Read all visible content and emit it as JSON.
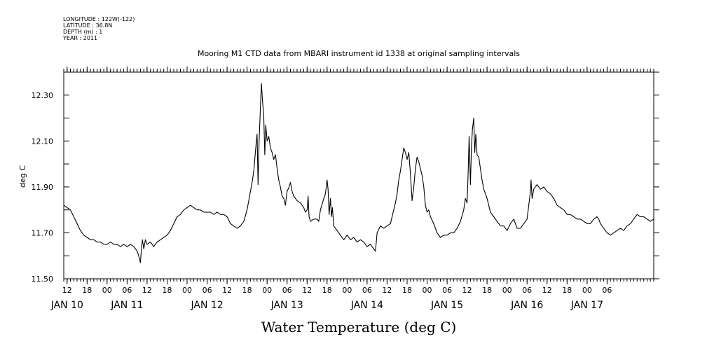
{
  "header": {
    "meta_lines": [
      "LONGITUDE : 122W(-122)",
      "LATITUDE : 36.8N",
      "DEPTH (m) : 1",
      "YEAR : 2011"
    ]
  },
  "chart_data": {
    "type": "line",
    "title": "Mooring M1 CTD data from MBARI instrument id 1338 at original sampling intervals",
    "xlabel": "Water Temperature (deg C)",
    "ylabel": "deg C",
    "ylim": [
      11.5,
      12.4
    ],
    "yticks": [
      "11.50",
      "11.70",
      "11.90",
      "12.10",
      "12.30"
    ],
    "x_unit": "hours since Jan 10 00:00 (2011)",
    "xlim": [
      11,
      188
    ],
    "hour_ticks": [
      {
        "t": 12,
        "label": "12"
      },
      {
        "t": 18,
        "label": "18"
      },
      {
        "t": 24,
        "label": "00"
      },
      {
        "t": 30,
        "label": "06"
      },
      {
        "t": 36,
        "label": "12"
      },
      {
        "t": 42,
        "label": "18"
      },
      {
        "t": 48,
        "label": "00"
      },
      {
        "t": 54,
        "label": "06"
      },
      {
        "t": 60,
        "label": "12"
      },
      {
        "t": 66,
        "label": "18"
      },
      {
        "t": 72,
        "label": "00"
      },
      {
        "t": 78,
        "label": "06"
      },
      {
        "t": 84,
        "label": "12"
      },
      {
        "t": 90,
        "label": "18"
      },
      {
        "t": 96,
        "label": "00"
      },
      {
        "t": 102,
        "label": "06"
      },
      {
        "t": 108,
        "label": "12"
      },
      {
        "t": 114,
        "label": "18"
      },
      {
        "t": 120,
        "label": "00"
      },
      {
        "t": 126,
        "label": "06"
      },
      {
        "t": 132,
        "label": "12"
      },
      {
        "t": 138,
        "label": "18"
      },
      {
        "t": 144,
        "label": "00"
      },
      {
        "t": 150,
        "label": "06"
      },
      {
        "t": 156,
        "label": "12"
      },
      {
        "t": 162,
        "label": "18"
      },
      {
        "t": 168,
        "label": "00"
      },
      {
        "t": 174,
        "label": "06"
      }
    ],
    "day_labels": [
      {
        "t": 12,
        "label": "JAN 10"
      },
      {
        "t": 30,
        "label": "JAN 11"
      },
      {
        "t": 54,
        "label": "JAN 12"
      },
      {
        "t": 78,
        "label": "JAN 13"
      },
      {
        "t": 102,
        "label": "JAN 14"
      },
      {
        "t": 126,
        "label": "JAN 15"
      },
      {
        "t": 150,
        "label": "JAN 16"
      },
      {
        "t": 168,
        "label": "JAN 17"
      }
    ],
    "series": [
      {
        "color": "#000000",
        "points": [
          [
            11.0,
            11.82
          ],
          [
            12.0,
            11.81
          ],
          [
            13.0,
            11.8
          ],
          [
            14.0,
            11.77
          ],
          [
            15.0,
            11.74
          ],
          [
            16.0,
            11.71
          ],
          [
            17.0,
            11.69
          ],
          [
            18.0,
            11.68
          ],
          [
            19.0,
            11.67
          ],
          [
            20.0,
            11.67
          ],
          [
            21.0,
            11.66
          ],
          [
            22.0,
            11.66
          ],
          [
            23.0,
            11.65
          ],
          [
            24.0,
            11.65
          ],
          [
            25.0,
            11.66
          ],
          [
            26.0,
            11.65
          ],
          [
            27.0,
            11.65
          ],
          [
            28.0,
            11.64
          ],
          [
            29.0,
            11.65
          ],
          [
            30.0,
            11.64
          ],
          [
            31.0,
            11.65
          ],
          [
            32.0,
            11.64
          ],
          [
            33.0,
            11.62
          ],
          [
            33.5,
            11.6
          ],
          [
            34.0,
            11.57
          ],
          [
            34.3,
            11.63
          ],
          [
            34.6,
            11.67
          ],
          [
            35.0,
            11.63
          ],
          [
            35.5,
            11.67
          ],
          [
            36.0,
            11.65
          ],
          [
            37.0,
            11.66
          ],
          [
            38.0,
            11.64
          ],
          [
            39.0,
            11.66
          ],
          [
            40.0,
            11.67
          ],
          [
            41.0,
            11.68
          ],
          [
            42.0,
            11.69
          ],
          [
            43.0,
            11.71
          ],
          [
            44.0,
            11.74
          ],
          [
            45.0,
            11.77
          ],
          [
            46.0,
            11.78
          ],
          [
            47.0,
            11.8
          ],
          [
            48.0,
            11.81
          ],
          [
            49.0,
            11.82
          ],
          [
            50.0,
            11.81
          ],
          [
            51.0,
            11.8
          ],
          [
            52.0,
            11.8
          ],
          [
            53.0,
            11.79
          ],
          [
            54.0,
            11.79
          ],
          [
            55.0,
            11.79
          ],
          [
            56.0,
            11.78
          ],
          [
            57.0,
            11.79
          ],
          [
            58.0,
            11.78
          ],
          [
            59.0,
            11.78
          ],
          [
            60.0,
            11.77
          ],
          [
            61.0,
            11.74
          ],
          [
            62.0,
            11.73
          ],
          [
            63.0,
            11.72
          ],
          [
            64.0,
            11.73
          ],
          [
            65.0,
            11.75
          ],
          [
            66.0,
            11.8
          ],
          [
            67.0,
            11.88
          ],
          [
            67.5,
            11.92
          ],
          [
            68.0,
            11.97
          ],
          [
            68.6,
            12.07
          ],
          [
            69.0,
            12.13
          ],
          [
            69.3,
            11.91
          ],
          [
            69.6,
            12.1
          ],
          [
            70.0,
            12.25
          ],
          [
            70.3,
            12.35
          ],
          [
            70.6,
            12.28
          ],
          [
            71.0,
            12.21
          ],
          [
            71.3,
            12.04
          ],
          [
            71.6,
            12.17
          ],
          [
            72.0,
            12.1
          ],
          [
            72.5,
            12.12
          ],
          [
            73.0,
            12.07
          ],
          [
            73.5,
            12.05
          ],
          [
            74.0,
            12.02
          ],
          [
            74.5,
            12.04
          ],
          [
            75.0,
            11.98
          ],
          [
            75.5,
            11.93
          ],
          [
            76.0,
            11.9
          ],
          [
            76.5,
            11.86
          ],
          [
            77.0,
            11.85
          ],
          [
            77.5,
            11.82
          ],
          [
            78.0,
            11.88
          ],
          [
            78.6,
            11.9
          ],
          [
            79.0,
            11.92
          ],
          [
            79.5,
            11.88
          ],
          [
            80.0,
            11.86
          ],
          [
            81.0,
            11.84
          ],
          [
            82.0,
            11.83
          ],
          [
            83.0,
            11.81
          ],
          [
            83.5,
            11.79
          ],
          [
            84.0,
            11.8
          ],
          [
            84.3,
            11.86
          ],
          [
            84.6,
            11.77
          ],
          [
            85.0,
            11.75
          ],
          [
            86.0,
            11.76
          ],
          [
            87.0,
            11.76
          ],
          [
            87.5,
            11.75
          ],
          [
            88.0,
            11.8
          ],
          [
            89.0,
            11.85
          ],
          [
            89.5,
            11.87
          ],
          [
            90.0,
            11.93
          ],
          [
            90.3,
            11.89
          ],
          [
            90.6,
            11.78
          ],
          [
            91.0,
            11.85
          ],
          [
            91.3,
            11.77
          ],
          [
            91.6,
            11.81
          ],
          [
            92.0,
            11.73
          ],
          [
            93.0,
            11.71
          ],
          [
            94.0,
            11.69
          ],
          [
            95.0,
            11.67
          ],
          [
            96.0,
            11.69
          ],
          [
            97.0,
            11.67
          ],
          [
            98.0,
            11.68
          ],
          [
            99.0,
            11.66
          ],
          [
            100.0,
            11.67
          ],
          [
            101.0,
            11.66
          ],
          [
            102.0,
            11.64
          ],
          [
            103.0,
            11.65
          ],
          [
            104.0,
            11.63
          ],
          [
            104.5,
            11.62
          ],
          [
            105.0,
            11.7
          ],
          [
            106.0,
            11.73
          ],
          [
            107.0,
            11.72
          ],
          [
            108.0,
            11.73
          ],
          [
            109.0,
            11.74
          ],
          [
            110.0,
            11.8
          ],
          [
            110.5,
            11.83
          ],
          [
            111.0,
            11.87
          ],
          [
            111.5,
            11.93
          ],
          [
            112.0,
            11.97
          ],
          [
            113.0,
            12.07
          ],
          [
            113.5,
            12.05
          ],
          [
            114.0,
            12.02
          ],
          [
            114.5,
            12.05
          ],
          [
            115.0,
            11.96
          ],
          [
            115.5,
            11.84
          ],
          [
            116.0,
            11.9
          ],
          [
            116.5,
            11.98
          ],
          [
            117.0,
            12.03
          ],
          [
            117.5,
            12.01
          ],
          [
            118.0,
            11.98
          ],
          [
            118.5,
            11.95
          ],
          [
            119.0,
            11.9
          ],
          [
            119.5,
            11.82
          ],
          [
            120.0,
            11.79
          ],
          [
            120.5,
            11.8
          ],
          [
            121.0,
            11.77
          ],
          [
            122.0,
            11.74
          ],
          [
            123.0,
            11.7
          ],
          [
            124.0,
            11.68
          ],
          [
            125.0,
            11.69
          ],
          [
            126.0,
            11.69
          ],
          [
            127.0,
            11.7
          ],
          [
            128.0,
            11.7
          ],
          [
            129.0,
            11.72
          ],
          [
            130.0,
            11.75
          ],
          [
            131.0,
            11.8
          ],
          [
            131.5,
            11.85
          ],
          [
            132.0,
            11.83
          ],
          [
            132.3,
            11.95
          ],
          [
            132.6,
            12.12
          ],
          [
            133.0,
            11.91
          ],
          [
            133.3,
            12.07
          ],
          [
            133.6,
            12.15
          ],
          [
            134.0,
            12.2
          ],
          [
            134.3,
            12.05
          ],
          [
            134.6,
            12.13
          ],
          [
            135.0,
            12.04
          ],
          [
            135.5,
            12.03
          ],
          [
            136.0,
            11.98
          ],
          [
            136.5,
            11.93
          ],
          [
            137.0,
            11.89
          ],
          [
            137.5,
            11.87
          ],
          [
            138.0,
            11.85
          ],
          [
            139.0,
            11.79
          ],
          [
            140.0,
            11.77
          ],
          [
            141.0,
            11.75
          ],
          [
            142.0,
            11.73
          ],
          [
            143.0,
            11.73
          ],
          [
            144.0,
            11.71
          ],
          [
            145.0,
            11.74
          ],
          [
            146.0,
            11.76
          ],
          [
            147.0,
            11.72
          ],
          [
            148.0,
            11.72
          ],
          [
            149.0,
            11.74
          ],
          [
            150.0,
            11.76
          ],
          [
            150.5,
            11.82
          ],
          [
            151.0,
            11.88
          ],
          [
            151.2,
            11.93
          ],
          [
            151.5,
            11.85
          ],
          [
            152.0,
            11.89
          ],
          [
            153.0,
            11.91
          ],
          [
            154.0,
            11.89
          ],
          [
            155.0,
            11.9
          ],
          [
            156.0,
            11.88
          ],
          [
            157.0,
            11.87
          ],
          [
            158.0,
            11.85
          ],
          [
            159.0,
            11.82
          ],
          [
            160.0,
            11.81
          ],
          [
            161.0,
            11.8
          ],
          [
            162.0,
            11.78
          ],
          [
            163.0,
            11.78
          ],
          [
            164.0,
            11.77
          ],
          [
            165.0,
            11.76
          ],
          [
            166.0,
            11.76
          ],
          [
            167.0,
            11.75
          ],
          [
            168.0,
            11.74
          ],
          [
            169.0,
            11.74
          ],
          [
            170.0,
            11.76
          ],
          [
            171.0,
            11.77
          ],
          [
            171.5,
            11.76
          ],
          [
            172.0,
            11.74
          ],
          [
            173.0,
            11.72
          ],
          [
            174.0,
            11.7
          ],
          [
            175.0,
            11.69
          ],
          [
            176.0,
            11.7
          ],
          [
            177.0,
            11.71
          ],
          [
            178.0,
            11.72
          ],
          [
            179.0,
            11.71
          ],
          [
            180.0,
            11.73
          ],
          [
            181.0,
            11.74
          ],
          [
            182.0,
            11.76
          ],
          [
            183.0,
            11.78
          ],
          [
            184.0,
            11.77
          ],
          [
            185.0,
            11.77
          ],
          [
            186.0,
            11.76
          ],
          [
            187.0,
            11.75
          ],
          [
            188.0,
            11.76
          ]
        ]
      }
    ]
  }
}
